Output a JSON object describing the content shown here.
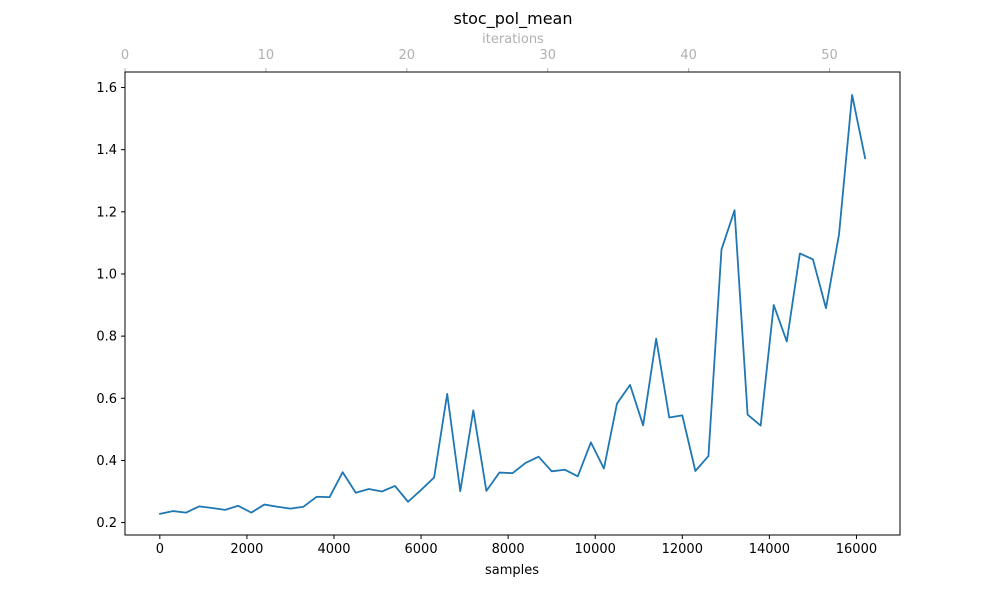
{
  "colors": {
    "series": "#1f77b4",
    "top_axis": "#b0b0b0"
  },
  "chart_data": {
    "type": "line",
    "title": "stoc_pol_mean",
    "xlabel": "samples",
    "top_xlabel": "iterations",
    "ylabel": "",
    "xlim": [
      -800,
      17000
    ],
    "ylim": [
      0.16,
      1.65
    ],
    "top_xlim": [
      0,
      55
    ],
    "x_ticks": [
      0,
      2000,
      4000,
      6000,
      8000,
      10000,
      12000,
      14000,
      16000
    ],
    "x_tick_labels": [
      "0",
      "2000",
      "4000",
      "6000",
      "8000",
      "10000",
      "12000",
      "14000",
      "16000"
    ],
    "y_ticks": [
      0.2,
      0.4,
      0.6,
      0.8,
      1.0,
      1.2,
      1.4,
      1.6
    ],
    "y_tick_labels": [
      "0.2",
      "0.4",
      "0.6",
      "0.8",
      "1.0",
      "1.2",
      "1.4",
      "1.6"
    ],
    "top_x_ticks": [
      0,
      10,
      20,
      30,
      40,
      50
    ],
    "top_x_tick_labels": [
      "0",
      "10",
      "20",
      "30",
      "40",
      "50"
    ],
    "grid": false,
    "legend": "none",
    "series": [
      {
        "x": [
          0,
          300,
          600,
          900,
          1200,
          1500,
          1800,
          2100,
          2400,
          2700,
          3000,
          3300,
          3600,
          3900,
          4200,
          4500,
          4800,
          5100,
          5400,
          5700,
          6000,
          6300,
          6600,
          6900,
          7200,
          7500,
          7800,
          8100,
          8400,
          8700,
          9000,
          9300,
          9600,
          9900,
          10200,
          10500,
          10800,
          11100,
          11400,
          11700,
          12000,
          12300,
          12600,
          12900,
          13200,
          13500,
          13800,
          14100,
          14400,
          14700,
          15000,
          15300,
          15600,
          15900,
          16200
        ],
        "values": [
          0.228,
          0.237,
          0.232,
          0.252,
          0.247,
          0.241,
          0.254,
          0.232,
          0.258,
          0.251,
          0.245,
          0.251,
          0.283,
          0.282,
          0.362,
          0.296,
          0.308,
          0.3,
          0.318,
          0.267,
          0.305,
          0.345,
          0.614,
          0.301,
          0.561,
          0.302,
          0.361,
          0.359,
          0.392,
          0.412,
          0.365,
          0.37,
          0.349,
          0.458,
          0.374,
          0.583,
          0.643,
          0.513,
          0.792,
          0.538,
          0.545,
          0.366,
          0.414,
          1.079,
          1.205,
          0.547,
          0.512,
          0.9,
          0.783,
          1.066,
          1.047,
          0.89,
          1.128,
          1.576,
          1.372
        ]
      }
    ]
  }
}
